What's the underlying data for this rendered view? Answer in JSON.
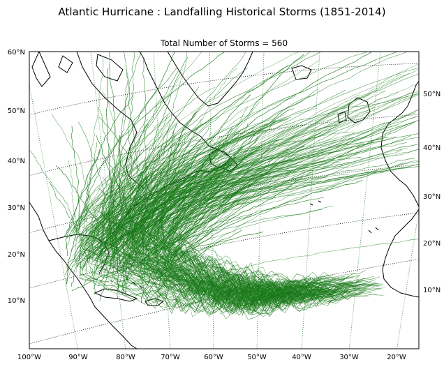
{
  "title": "Atlantic Hurricane : Landfalling Historical Storms (1851-2014)",
  "subtitle": "Total Number of Storms = 560",
  "colors": {
    "track": "#1a7a1a",
    "coast": "#000000",
    "graticule": "#2e7d32",
    "graticule_alt": "#000000"
  },
  "left_lat_labels": [
    "60°N",
    "50°N",
    "40°N",
    "30°N",
    "20°N",
    "10°N"
  ],
  "right_lat_labels": [
    "50°N",
    "40°N",
    "30°N",
    "20°N",
    "10°N"
  ],
  "bottom_lon_labels": [
    "100°W",
    "90°W",
    "80°W",
    "70°W",
    "60°W",
    "50°W",
    "40°W",
    "30°W",
    "20°W"
  ]
}
